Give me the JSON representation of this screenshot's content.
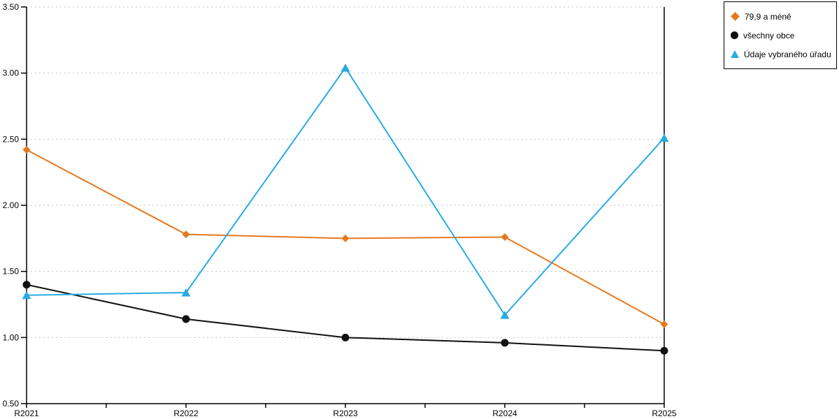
{
  "chart": {
    "background": "#ffffff",
    "axis_color": "#000000",
    "grid_color": "#c2c2c2",
    "tick_label_color": "#000000",
    "tick_font_size": 12
  },
  "chart_data": {
    "type": "line",
    "title": "",
    "xlabel": "",
    "ylabel": "",
    "categories": [
      "R2021",
      "R2022",
      "R2023",
      "R2024",
      "R2025"
    ],
    "series": [
      {
        "name": "79,9 a méně",
        "color": "#e5791e",
        "marker": "diamond",
        "values": [
          2.42,
          1.78,
          1.75,
          1.76,
          1.1
        ]
      },
      {
        "name": "všechny obce",
        "color": "#111111",
        "marker": "circle",
        "values": [
          1.4,
          1.14,
          1.0,
          0.96,
          0.9
        ]
      },
      {
        "name": "Údaje vybraného úřadu",
        "color": "#29abe2",
        "marker": "triangle",
        "values": [
          1.32,
          1.34,
          3.04,
          1.17,
          2.51
        ]
      }
    ],
    "ylim": [
      0.5,
      3.5
    ],
    "ytick_step": 0.5,
    "ytick_labels": [
      "0.50",
      "1.00",
      "1.50",
      "2.00",
      "2.50",
      "3.00",
      "3.50"
    ],
    "grid": true,
    "grid_style": "dotted",
    "legend_position": "top-right"
  },
  "legend": {
    "items": [
      {
        "label": "79,9 a méně",
        "marker": "diamond-icon",
        "color": "#e5791e"
      },
      {
        "label": "všechny obce",
        "marker": "circle-icon",
        "color": "#111111"
      },
      {
        "label": "Údaje vybraného úřadu",
        "marker": "triangle-icon",
        "color": "#29abe2"
      }
    ]
  }
}
